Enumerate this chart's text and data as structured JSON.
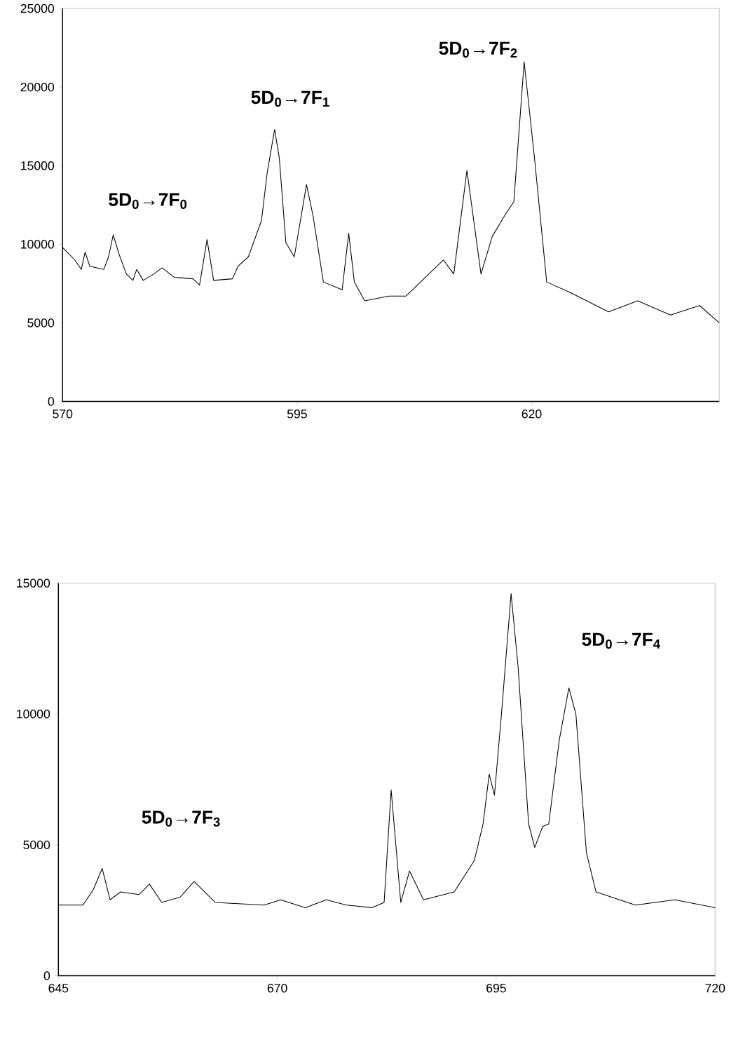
{
  "chart_data": [
    {
      "type": "line",
      "color": "#000000",
      "marker": "none",
      "line_style": "solid",
      "grid": false,
      "xlim": [
        570,
        640
      ],
      "ylim": [
        0,
        25000
      ],
      "xticks": [
        570,
        595,
        620
      ],
      "yticks": [
        0,
        5000,
        10000,
        15000,
        20000,
        25000
      ],
      "x": [
        570,
        571.3,
        572,
        572.4,
        572.9,
        574.4,
        574.9,
        575.4,
        576,
        576.8,
        577.5,
        577.9,
        578.6,
        579.7,
        580.6,
        581.9,
        583.9,
        584.6,
        585.4,
        586.1,
        588.1,
        588.7,
        589.8,
        591.2,
        591.8,
        592.6,
        593.1,
        593.8,
        594.7,
        596,
        596.7,
        597.8,
        599.8,
        600.5,
        601.1,
        602.2,
        604.8,
        606.6,
        610.6,
        611.7,
        613.1,
        614.6,
        615.8,
        617.2,
        618.1,
        619.2,
        620.3,
        621.6,
        624.2,
        628.2,
        631.3,
        634.8,
        637.9,
        640
      ],
      "values": [
        9800,
        9000,
        8400,
        9500,
        8600,
        8400,
        9200,
        10600,
        9400,
        8100,
        7700,
        8400,
        7700,
        8100,
        8500,
        7900,
        7800,
        7400,
        10300,
        7700,
        7800,
        8600,
        9200,
        11500,
        14500,
        17300,
        15500,
        10100,
        9200,
        13800,
        11800,
        7600,
        7100,
        10700,
        7600,
        6400,
        6700,
        6700,
        9000,
        8100,
        14700,
        8100,
        10500,
        11900,
        12700,
        21600,
        15500,
        7600,
        6900,
        5700,
        6400,
        5500,
        6100,
        5000
      ],
      "annotations": [
        "5D$_{0}$→7F$_{0}$",
        "5D$_{0}$→7F$_{1}$",
        "5D$_{0}$→7F$_{2}$"
      ]
    },
    {
      "type": "line",
      "color": "#000000",
      "marker": "none",
      "line_style": "solid",
      "grid": false,
      "xlim": [
        645,
        720
      ],
      "ylim": [
        0,
        15000
      ],
      "xticks": [
        645,
        670,
        695,
        720
      ],
      "yticks": [
        0,
        5000,
        10000,
        15000
      ],
      "x": [
        645,
        647.8,
        649,
        650,
        650.9,
        652.1,
        654.2,
        655.4,
        656.8,
        658.9,
        660.5,
        662.9,
        668.5,
        670.4,
        673.2,
        675.6,
        677.9,
        680.8,
        682.2,
        683,
        684.1,
        685.1,
        686.7,
        690.2,
        692.5,
        693.5,
        694.2,
        694.8,
        695.6,
        696.7,
        697.5,
        698.7,
        699.4,
        700.3,
        701,
        702.2,
        703.3,
        704.1,
        705.3,
        706.4,
        710.9,
        715.4,
        720
      ],
      "values": [
        2700,
        2700,
        3300,
        4100,
        2900,
        3200,
        3100,
        3500,
        2800,
        3000,
        3600,
        2800,
        2700,
        2900,
        2600,
        2900,
        2700,
        2600,
        2800,
        7100,
        2800,
        4000,
        2900,
        3200,
        4400,
        5800,
        7700,
        6900,
        10000,
        14600,
        11800,
        5800,
        4900,
        5700,
        5800,
        9000,
        11000,
        10000,
        4700,
        3200,
        2700,
        2900,
        2600
      ],
      "annotations": [
        "5D$_{0}$→7F$_{3}$",
        "5D$_{0}$→7F$_{4}$"
      ]
    }
  ]
}
